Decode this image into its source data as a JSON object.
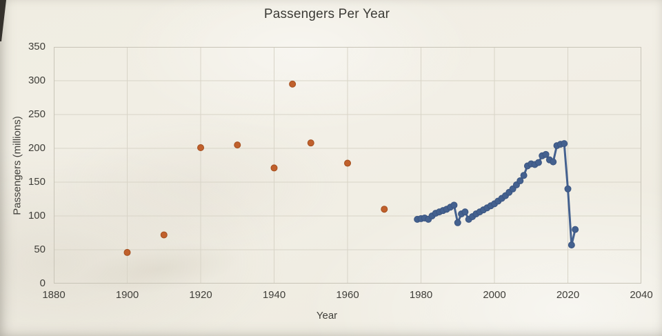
{
  "title": "Passengers Per Year",
  "chart_data": {
    "type": "scatter",
    "title": "Passengers Per Year",
    "xlabel": "Year",
    "ylabel": "Passengers (millions)",
    "xlim": [
      1880,
      2040
    ],
    "ylim": [
      0,
      350
    ],
    "x_ticks": [
      1880,
      1900,
      1920,
      1940,
      1960,
      1980,
      2000,
      2020,
      2040
    ],
    "y_ticks": [
      0,
      50,
      100,
      150,
      200,
      250,
      300,
      350
    ],
    "grid": true,
    "legend": "none",
    "series": [
      {
        "name": "historical-scatter",
        "type": "scatter",
        "color": "#c0602c",
        "edge_color": "#a34e1e",
        "x": [
          1900,
          1910,
          1920,
          1930,
          1940,
          1945,
          1950,
          1960,
          1970
        ],
        "y": [
          46,
          72,
          201,
          205,
          171,
          295,
          208,
          178,
          110
        ]
      },
      {
        "name": "recent-line",
        "type": "line",
        "color": "#44618f",
        "edge_color": "#3a5480",
        "x": [
          1979,
          1980,
          1981,
          1982,
          1983,
          1984,
          1985,
          1986,
          1987,
          1988,
          1989,
          1990,
          1991,
          1992,
          1993,
          1994,
          1995,
          1996,
          1997,
          1998,
          1999,
          2000,
          2001,
          2002,
          2003,
          2004,
          2005,
          2006,
          2007,
          2008,
          2009,
          2010,
          2011,
          2012,
          2013,
          2014,
          2015,
          2016,
          2017,
          2018,
          2019,
          2020,
          2021,
          2022
        ],
        "y": [
          95,
          96,
          97,
          95,
          100,
          104,
          106,
          108,
          110,
          113,
          116,
          90,
          103,
          106,
          95,
          99,
          103,
          106,
          109,
          112,
          115,
          118,
          122,
          126,
          130,
          135,
          140,
          146,
          152,
          160,
          174,
          177,
          176,
          179,
          189,
          191,
          183,
          180,
          204,
          206,
          207,
          140,
          57,
          80
        ]
      }
    ]
  },
  "colors": {
    "paper": "#f0ede2",
    "gridline": "#d8d4c7",
    "axis_line": "#a9a598",
    "plot_border": "#c8c4b7",
    "text": "#3f3e39"
  }
}
